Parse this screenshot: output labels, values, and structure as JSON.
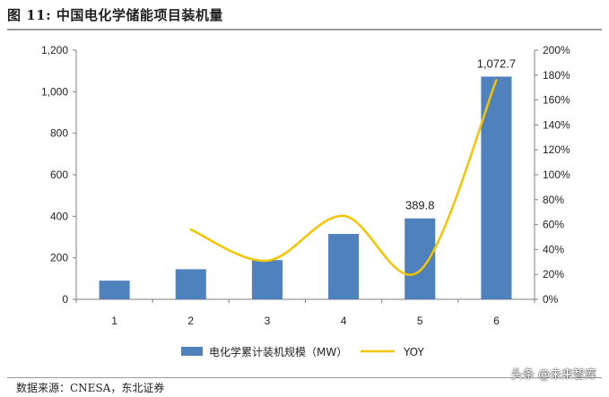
{
  "title": "图 11: 中国电化学储能项目装机量",
  "source": "数据来源：CNESA，东北证券",
  "watermark": "头条 @未来智库",
  "chart_data": {
    "type": "bar",
    "categories": [
      "1",
      "2",
      "3",
      "4",
      "5",
      "6"
    ],
    "series": [
      {
        "name": "电化学累计装机规模（MW）",
        "type": "bar",
        "axis": "left",
        "color": "#4f81bd",
        "values": [
          90,
          145,
          189,
          315,
          389.8,
          1072.7
        ]
      },
      {
        "name": "YOY",
        "type": "line",
        "axis": "right",
        "color": "#f5c400",
        "values": [
          null,
          0.56,
          0.31,
          0.67,
          0.23,
          1.76
        ]
      }
    ],
    "data_labels": [
      {
        "category": "5",
        "text": "389.8"
      },
      {
        "category": "6",
        "text": "1,072.7"
      }
    ],
    "y_left": {
      "ylim": [
        0,
        1200
      ],
      "ticks": [
        0,
        200,
        400,
        600,
        800,
        1000,
        1200
      ],
      "tick_labels": [
        "0",
        "200",
        "400",
        "600",
        "800",
        "1,000",
        "1,200"
      ]
    },
    "y_right": {
      "ylim": [
        0,
        2
      ],
      "ticks": [
        0,
        0.2,
        0.4,
        0.6,
        0.8,
        1.0,
        1.2,
        1.4,
        1.6,
        1.8,
        2.0
      ],
      "tick_labels": [
        "0%",
        "20%",
        "40%",
        "60%",
        "80%",
        "100%",
        "120%",
        "140%",
        "160%",
        "180%",
        "200%"
      ]
    },
    "grid": false,
    "legend": "bottom-center"
  }
}
